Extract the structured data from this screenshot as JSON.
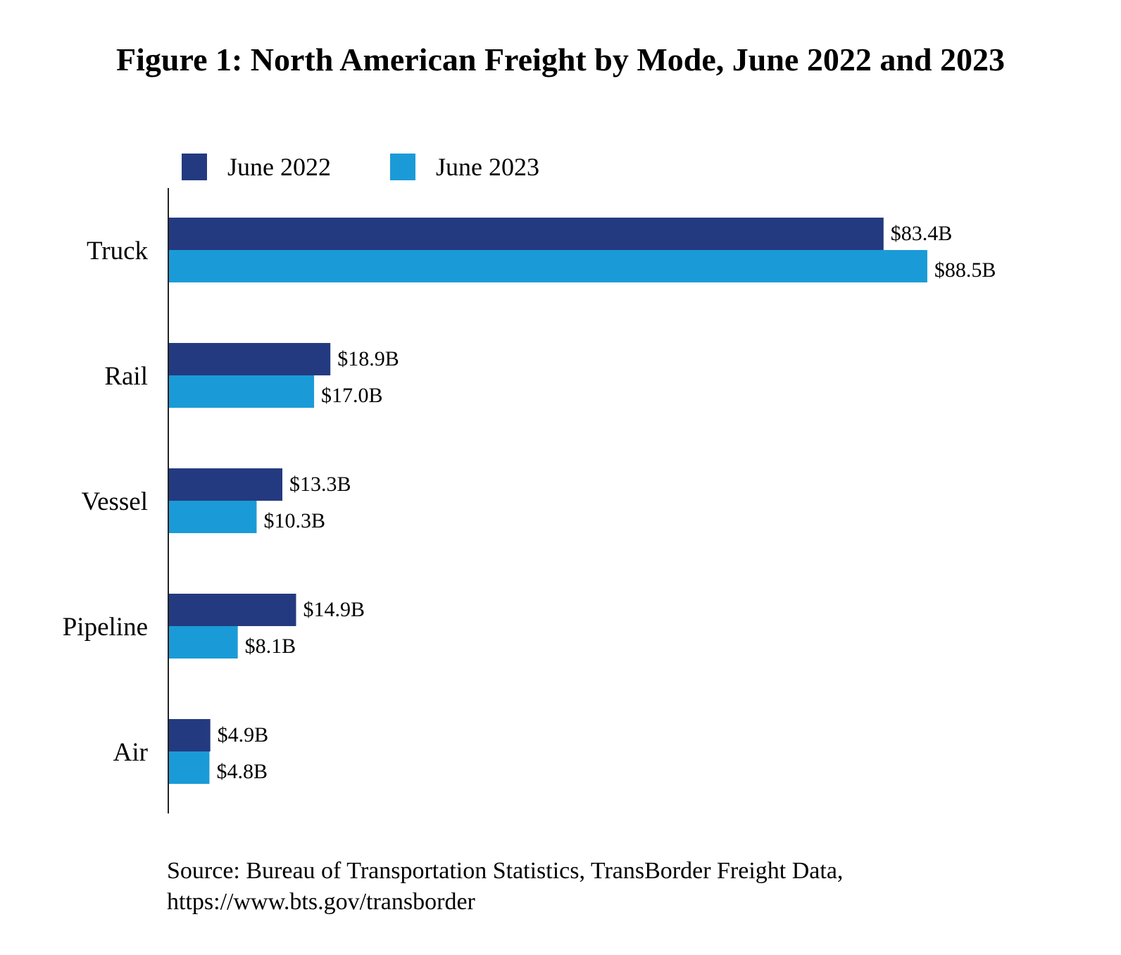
{
  "colors": {
    "june_2022": "#243A80",
    "june_2023": "#1A9BD7"
  },
  "chart_data": {
    "type": "bar",
    "orientation": "horizontal",
    "title": "Figure 1: North American Freight by Mode, June 2022 and 2023",
    "categories": [
      "Truck",
      "Rail",
      "Vessel",
      "Pipeline",
      "Air"
    ],
    "series": [
      {
        "name": "June 2022",
        "values": [
          83.4,
          18.9,
          13.3,
          14.9,
          4.9
        ],
        "labels": [
          "$83.4B",
          "$18.9B",
          "$13.3B",
          "$14.9B",
          "$4.9B"
        ]
      },
      {
        "name": "June 2023",
        "values": [
          88.5,
          17.0,
          10.3,
          8.1,
          4.8
        ],
        "labels": [
          "$88.5B",
          "$17.0B",
          "$10.3B",
          "$8.1B",
          "$4.8B"
        ]
      }
    ],
    "unit": "billion USD",
    "legend": "top",
    "grid": false
  },
  "source": {
    "line1": "Source: Bureau of Transportation Statistics, TransBorder Freight Data,",
    "line2": "https://www.bts.gov/transborder"
  }
}
